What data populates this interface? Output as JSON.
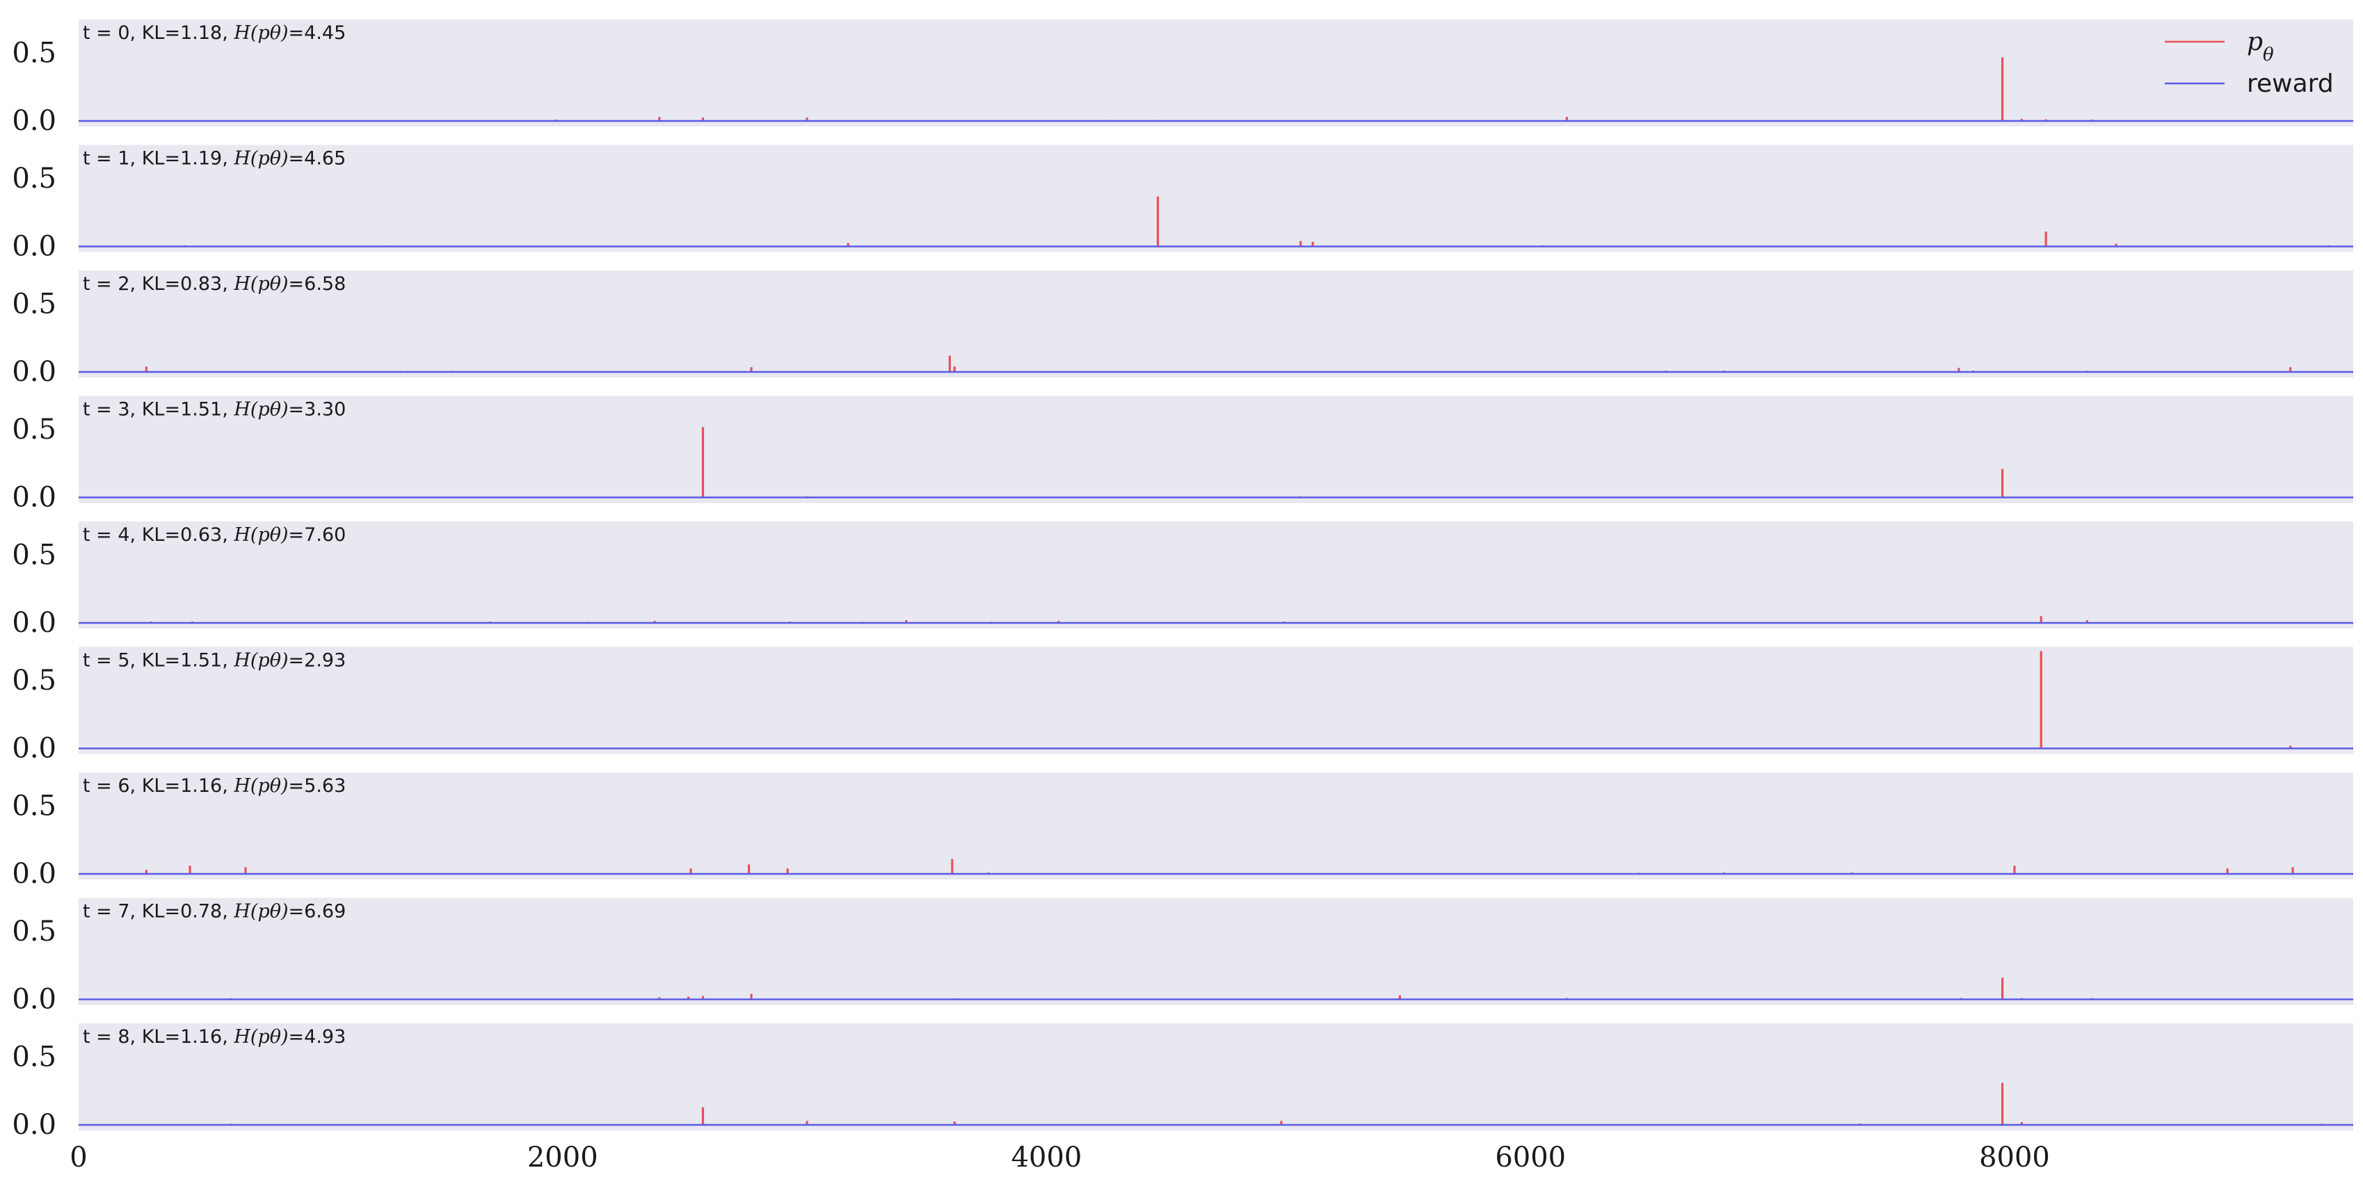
{
  "chart_data": {
    "type": "line",
    "description_of_layout": "stacked small multiples sharing x axis",
    "xlim": [
      0,
      9400
    ],
    "ylim": [
      0,
      0.75
    ],
    "xticks": [
      0,
      2000,
      4000,
      6000,
      8000
    ],
    "xtick_labels": [
      "0",
      "2000",
      "4000",
      "6000",
      "8000"
    ],
    "yticks": [
      0.0,
      0.5
    ],
    "ytick_labels": [
      "0.0",
      "0.5"
    ],
    "legend": {
      "placement": "top-right",
      "entries": [
        {
          "label": "p_θ",
          "color": "#e8505b"
        },
        {
          "label": "reward",
          "color": "#5a5ae6"
        }
      ]
    },
    "colors": {
      "panel_bg": "#e8e8f0",
      "p_theta": "#e8505b",
      "reward": "#5a5ae6"
    },
    "reward_value": 0.0,
    "panels": [
      {
        "label": "t = 0, KL=1.18, H(p_θ)=4.45",
        "t": "0",
        "kl": "1.18",
        "entropy": "4.45",
        "spikes": [
          [
            1970,
            0.01
          ],
          [
            2400,
            0.03
          ],
          [
            2580,
            0.025
          ],
          [
            3010,
            0.025
          ],
          [
            4260,
            0.008
          ],
          [
            4460,
            0.008
          ],
          [
            6150,
            0.03
          ],
          [
            7950,
            0.47
          ],
          [
            8030,
            0.015
          ],
          [
            8130,
            0.012
          ],
          [
            8320,
            0.01
          ]
        ]
      },
      {
        "label": "t = 1, KL=1.19, H(p_θ)=4.65",
        "t": "1",
        "kl": "1.19",
        "entropy": "4.65",
        "spikes": [
          [
            440,
            0.008
          ],
          [
            1280,
            0.006
          ],
          [
            3180,
            0.025
          ],
          [
            4460,
            0.37
          ],
          [
            5050,
            0.04
          ],
          [
            5100,
            0.035
          ],
          [
            6050,
            0.008
          ],
          [
            8130,
            0.11
          ],
          [
            8420,
            0.02
          ],
          [
            9300,
            0.008
          ]
        ]
      },
      {
        "label": "t = 2, KL=0.83, H(p_θ)=6.58",
        "t": "2",
        "kl": "0.83",
        "entropy": "6.58",
        "spikes": [
          [
            280,
            0.04
          ],
          [
            1360,
            0.008
          ],
          [
            1540,
            0.008
          ],
          [
            2400,
            0.006
          ],
          [
            2780,
            0.035
          ],
          [
            3600,
            0.12
          ],
          [
            3620,
            0.04
          ],
          [
            6560,
            0.01
          ],
          [
            6800,
            0.01
          ],
          [
            7770,
            0.03
          ],
          [
            7830,
            0.01
          ],
          [
            8300,
            0.008
          ],
          [
            9140,
            0.035
          ]
        ]
      },
      {
        "label": "t = 3, KL=1.51, H(p_θ)=3.30",
        "t": "3",
        "kl": "1.51",
        "entropy": "3.30",
        "spikes": [
          [
            2580,
            0.52
          ],
          [
            3010,
            0.008
          ],
          [
            5050,
            0.008
          ],
          [
            7950,
            0.21
          ]
        ]
      },
      {
        "label": "t = 4, KL=0.63, H(p_θ)=7.60",
        "t": "4",
        "kl": "0.63",
        "entropy": "7.60",
        "spikes": [
          [
            300,
            0.01
          ],
          [
            470,
            0.01
          ],
          [
            1700,
            0.01
          ],
          [
            2100,
            0.008
          ],
          [
            2380,
            0.015
          ],
          [
            2940,
            0.01
          ],
          [
            3240,
            0.008
          ],
          [
            3420,
            0.02
          ],
          [
            3770,
            0.008
          ],
          [
            4050,
            0.015
          ],
          [
            4980,
            0.01
          ],
          [
            8110,
            0.05
          ],
          [
            8300,
            0.02
          ]
        ]
      },
      {
        "label": "t = 5, KL=1.51, H(p_θ)=2.93",
        "t": "5",
        "kl": "1.51",
        "entropy": "2.93",
        "spikes": [
          [
            8110,
            0.72
          ],
          [
            9140,
            0.02
          ]
        ]
      },
      {
        "label": "t = 6, KL=1.16, H(p_θ)=5.63",
        "t": "6",
        "kl": "1.16",
        "entropy": "5.63",
        "spikes": [
          [
            280,
            0.03
          ],
          [
            460,
            0.06
          ],
          [
            690,
            0.05
          ],
          [
            2530,
            0.04
          ],
          [
            2770,
            0.07
          ],
          [
            2930,
            0.04
          ],
          [
            3610,
            0.11
          ],
          [
            3760,
            0.01
          ],
          [
            6450,
            0.008
          ],
          [
            6800,
            0.01
          ],
          [
            7330,
            0.01
          ],
          [
            8000,
            0.06
          ],
          [
            8880,
            0.04
          ],
          [
            9150,
            0.05
          ]
        ]
      },
      {
        "label": "t = 7, KL=0.78, H(p_θ)=6.69",
        "t": "7",
        "kl": "0.78",
        "entropy": "6.69",
        "spikes": [
          [
            630,
            0.008
          ],
          [
            2400,
            0.015
          ],
          [
            2520,
            0.02
          ],
          [
            2580,
            0.025
          ],
          [
            2780,
            0.04
          ],
          [
            3620,
            0.008
          ],
          [
            5460,
            0.03
          ],
          [
            6150,
            0.01
          ],
          [
            7780,
            0.01
          ],
          [
            7950,
            0.16
          ],
          [
            8030,
            0.01
          ],
          [
            8320,
            0.01
          ]
        ]
      },
      {
        "label": "t = 8, KL=1.16, H(p_θ)=4.93",
        "t": "8",
        "kl": "1.16",
        "entropy": "4.93",
        "spikes": [
          [
            630,
            0.008
          ],
          [
            2580,
            0.13
          ],
          [
            3010,
            0.03
          ],
          [
            3620,
            0.025
          ],
          [
            4970,
            0.03
          ],
          [
            7360,
            0.01
          ],
          [
            7950,
            0.31
          ],
          [
            8030,
            0.02
          ],
          [
            9270,
            0.008
          ]
        ]
      }
    ]
  }
}
